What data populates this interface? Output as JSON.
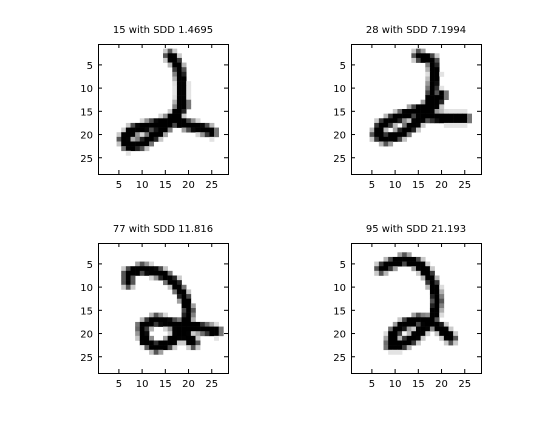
{
  "figure": {
    "background": "#ffffff"
  },
  "chart_data": [
    {
      "type": "heatmap",
      "title": "15 with SDD 1.4695",
      "xticks": [
        5,
        10,
        15,
        20,
        25
      ],
      "yticks": [
        5,
        10,
        15,
        20,
        25
      ],
      "xlim": [
        0.5,
        28.5
      ],
      "ylim": [
        0.5,
        28.5
      ],
      "colormap": "gray_r",
      "strokes": [
        [
          [
            16,
            3
          ],
          [
            17,
            4
          ],
          [
            18,
            6
          ],
          [
            18.5,
            9
          ],
          [
            18.5,
            12
          ],
          [
            18,
            15
          ],
          [
            16,
            17
          ],
          [
            12,
            18
          ],
          [
            8,
            19
          ],
          [
            6,
            21
          ],
          [
            7,
            22.5
          ],
          [
            10,
            22
          ],
          [
            13,
            20
          ],
          [
            16,
            17.5
          ],
          [
            18,
            15
          ],
          [
            19,
            13.5
          ]
        ],
        [
          [
            17,
            17
          ],
          [
            20,
            18
          ],
          [
            24,
            19
          ],
          [
            25,
            19.5
          ]
        ]
      ]
    },
    {
      "type": "heatmap",
      "title": "28 with SDD 7.1994",
      "xticks": [
        5,
        10,
        15,
        20,
        25
      ],
      "yticks": [
        5,
        10,
        15,
        20,
        25
      ],
      "xlim": [
        0.5,
        28.5
      ],
      "ylim": [
        0.5,
        28.5
      ],
      "colormap": "gray_r",
      "strokes": [
        [
          [
            15,
            3
          ],
          [
            18,
            4
          ],
          [
            18.5,
            7
          ],
          [
            18,
            11
          ],
          [
            17,
            14
          ],
          [
            14,
            15
          ],
          [
            10,
            16.5
          ],
          [
            7,
            18
          ],
          [
            6,
            20
          ],
          [
            8,
            21
          ],
          [
            11,
            20
          ],
          [
            14,
            18
          ],
          [
            17,
            15
          ],
          [
            19,
            13
          ],
          [
            20,
            11.5
          ]
        ],
        [
          [
            17,
            16
          ],
          [
            21,
            16.5
          ],
          [
            25,
            16.5
          ]
        ]
      ]
    },
    {
      "type": "heatmap",
      "title": "77 with SDD 11.816",
      "xticks": [
        5,
        10,
        15,
        20,
        25
      ],
      "yticks": [
        5,
        10,
        15,
        20,
        25
      ],
      "xlim": [
        0.5,
        28.5
      ],
      "ylim": [
        0.5,
        28.5
      ],
      "colormap": "gray_r",
      "strokes": [
        [
          [
            7,
            9
          ],
          [
            7,
            7
          ],
          [
            10,
            6
          ],
          [
            14,
            7
          ],
          [
            17,
            9
          ],
          [
            19,
            12
          ],
          [
            20,
            15
          ],
          [
            19.5,
            18
          ],
          [
            18,
            20
          ],
          [
            16,
            22
          ],
          [
            13,
            23
          ],
          [
            10.5,
            21.5
          ],
          [
            10,
            18.5
          ],
          [
            13,
            17
          ],
          [
            17,
            18
          ],
          [
            21,
            18.5
          ],
          [
            26,
            19.5
          ]
        ],
        [
          [
            17,
            18
          ],
          [
            19,
            20
          ],
          [
            21,
            22
          ]
        ]
      ]
    },
    {
      "type": "heatmap",
      "title": "95 with SDD 21.193",
      "xticks": [
        5,
        10,
        15,
        20,
        25
      ],
      "yticks": [
        5,
        10,
        15,
        20,
        25
      ],
      "xlim": [
        0.5,
        28.5
      ],
      "ylim": [
        0.5,
        28.5
      ],
      "colormap": "gray_r",
      "strokes": [
        [
          [
            7,
            6
          ],
          [
            9,
            5
          ],
          [
            12,
            4
          ],
          [
            15,
            5
          ],
          [
            17,
            7
          ],
          [
            18.5,
            10
          ],
          [
            19,
            13
          ],
          [
            18.5,
            16
          ],
          [
            17,
            18
          ],
          [
            14,
            21
          ],
          [
            11,
            22.5
          ],
          [
            9,
            22.5
          ],
          [
            9.5,
            20
          ],
          [
            12,
            18
          ],
          [
            15,
            17
          ],
          [
            18,
            17.5
          ],
          [
            20,
            19
          ],
          [
            22,
            21
          ]
        ]
      ]
    }
  ]
}
